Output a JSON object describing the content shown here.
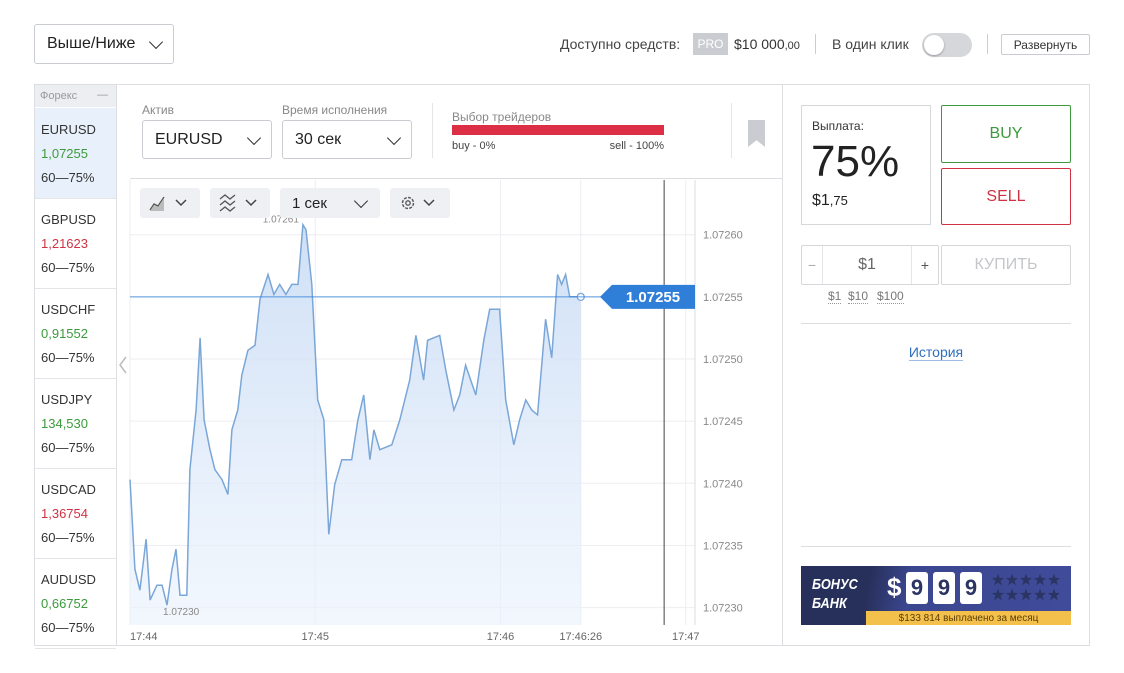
{
  "header": {
    "mode": "Выше/Ниже",
    "funds_label": "Доступно средств:",
    "badge": "PRO",
    "balance": "$10 000",
    "balance_cents": ",00",
    "one_click": "В один клик",
    "expand": "Развернуть"
  },
  "sidebar": {
    "title": "Форекс",
    "collapse": "—",
    "assets": [
      {
        "name": "EURUSD",
        "price": "1,07255",
        "range": "60—75%",
        "color": "#3c9a3c"
      },
      {
        "name": "GBPUSD",
        "price": "1,21623",
        "range": "60—75%",
        "color": "#cf3341"
      },
      {
        "name": "USDCHF",
        "price": "0,91552",
        "range": "60—75%",
        "color": "#3c9a3c"
      },
      {
        "name": "USDJPY",
        "price": "134,530",
        "range": "60—75%",
        "color": "#3c9a3c"
      },
      {
        "name": "USDCAD",
        "price": "1,36754",
        "range": "60—75%",
        "color": "#cf3341"
      },
      {
        "name": "AUDUSD",
        "price": "0,66752",
        "range": "60—75%",
        "color": "#3c9a3c"
      }
    ]
  },
  "controls": {
    "asset_label": "Актив",
    "asset": "EURUSD",
    "time_label": "Время исполнения",
    "time": "30 сек",
    "interval": "1 сек"
  },
  "sentiment": {
    "title": "Выбор трейдеров",
    "buy_label": "buy - 0%",
    "sell_label": "sell - 100%",
    "buy": 0,
    "sell": 100,
    "buy_color": "#3c9a3c",
    "sell_color": "#dc2f45"
  },
  "chart_data": {
    "type": "line",
    "series": [
      {
        "color": "#7aa6d8",
        "x": [
          0,
          1.6,
          3.2,
          5.2,
          6.5,
          8.7,
          10.4,
          12,
          13.6,
          14.9,
          16.2,
          18.4,
          19.4,
          21.4,
          22.7,
          24,
          25.9,
          27.5,
          29.8,
          31.7,
          33,
          34.9,
          36.2,
          38.2,
          40.5,
          42.1,
          44.7,
          46.6,
          48.5,
          50.5,
          52.4,
          54.4,
          56,
          57,
          58.9,
          60.8,
          62.8,
          64.4,
          66.3,
          68.6,
          71.8,
          73.8,
          75.7,
          77.7,
          79,
          80.9,
          84.8,
          87.4,
          90.6,
          92.6,
          95.1,
          96.4,
          100.3,
          102.3,
          104.9,
          106.8,
          108.7,
          112,
          114.6,
          116.5,
          119.7,
          121.7,
          124.3,
          126.2,
          128.2,
          130.1,
          132,
          134.6,
          136.6,
          138.5,
          139.8,
          141.1,
          142.4,
          146
        ],
        "values": [
          1.072403,
          1.072331,
          1.072314,
          1.072355,
          1.072306,
          1.072318,
          1.072318,
          1.072302,
          1.072331,
          1.072347,
          1.07231,
          1.07231,
          1.072411,
          1.072459,
          1.072517,
          1.072451,
          1.072427,
          1.072411,
          1.072403,
          1.072391,
          1.072443,
          1.072459,
          1.072487,
          1.072507,
          1.072511,
          1.072548,
          1.072568,
          1.072552,
          1.07256,
          1.072552,
          1.07256,
          1.07256,
          1.072608,
          1.072604,
          1.07256,
          1.072467,
          1.072451,
          1.072359,
          1.072399,
          1.072419,
          1.072419,
          1.072451,
          1.072471,
          1.072419,
          1.072443,
          1.072427,
          1.072431,
          1.072451,
          1.072483,
          1.072519,
          1.072483,
          1.072515,
          1.072519,
          1.072491,
          1.072459,
          1.072471,
          1.072495,
          1.072471,
          1.072515,
          1.07254,
          1.07254,
          1.072467,
          1.072431,
          1.072451,
          1.072467,
          1.072459,
          1.072455,
          1.072532,
          1.072501,
          1.072568,
          1.07256,
          1.072568,
          1.07255,
          1.07255
        ]
      }
    ],
    "xlim": [
      0,
      183
    ],
    "xticks": [
      {
        "value": 0,
        "label": "17:44"
      },
      {
        "value": 60,
        "label": "17:45"
      },
      {
        "value": 120,
        "label": "17:46"
      },
      {
        "value": 146,
        "label": "17:46:26"
      },
      {
        "value": 180,
        "label": "17:47"
      }
    ],
    "ylim": [
      1.072286,
      1.072644
    ],
    "yticks": [
      {
        "value": 1.0723,
        "label": "1.07230"
      },
      {
        "value": 1.07235,
        "label": "1.07235"
      },
      {
        "value": 1.0724,
        "label": "1.07240"
      },
      {
        "value": 1.07245,
        "label": "1.07245"
      },
      {
        "value": 1.0725,
        "label": "1.07250"
      },
      {
        "value": 1.07255,
        "label": "1.07255"
      },
      {
        "value": 1.0726,
        "label": "1.07260"
      }
    ],
    "annotations": [
      {
        "label": "1.07261",
        "x": 56,
        "y": 1.072608
      },
      {
        "label": "1.07230",
        "x": 12,
        "y": 1.072302
      }
    ],
    "current": {
      "value": 1.07255,
      "label": "1.07255",
      "color": "#2f7fd9"
    },
    "expiration": 173,
    "grid": true
  },
  "trade": {
    "payout_label": "Выплата:",
    "payout": "75%",
    "profit": "$1",
    "profit_cents": ",75",
    "buy": "BUY",
    "sell": "SELL",
    "minus": "−",
    "amount": "$1",
    "plus": "+",
    "purchase": "КУПИТЬ",
    "presets": [
      "$1",
      "$10",
      "$100"
    ],
    "history": "История"
  },
  "bonus": {
    "line1": "БОНУС",
    "line2": "БАНК",
    "currency": "$",
    "digits": [
      "9",
      "9",
      "9"
    ],
    "footer": "$133 814 выплачено за месяц"
  }
}
